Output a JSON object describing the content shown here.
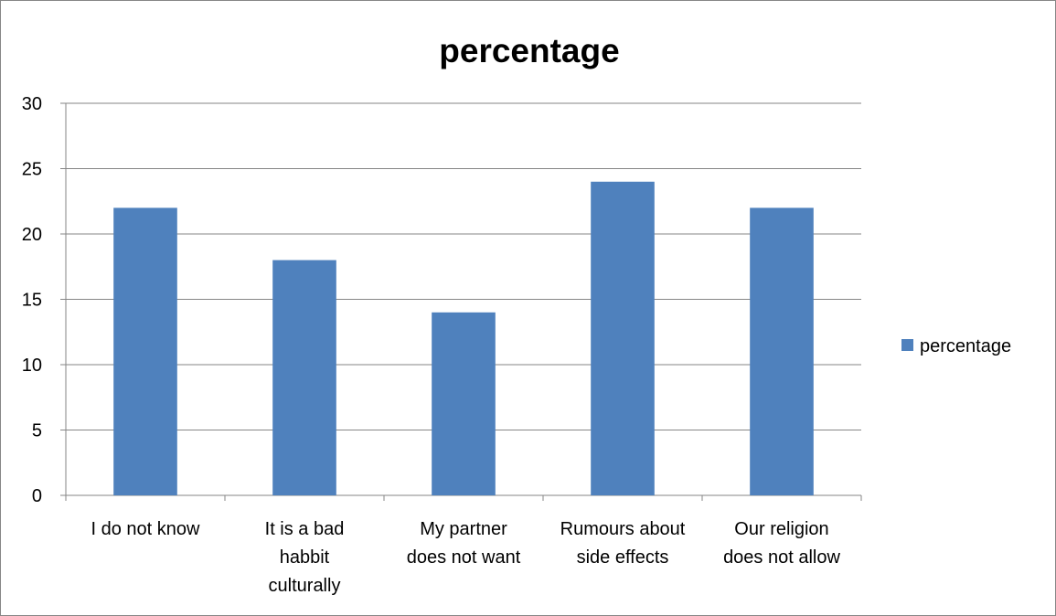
{
  "chart_data": {
    "type": "bar",
    "title": "percentage",
    "xlabel": "",
    "ylabel": "",
    "ylim": [
      0,
      30
    ],
    "yticks": [
      "0",
      "5",
      "10",
      "15",
      "20",
      "25",
      "30"
    ],
    "categories": [
      [
        "I do not know"
      ],
      [
        "It is a bad",
        "habbit",
        "culturally"
      ],
      [
        "My partner",
        "does not want"
      ],
      [
        "Rumours about",
        "side effects"
      ],
      [
        "Our religion",
        "does not allow"
      ]
    ],
    "series": [
      {
        "name": "percentage",
        "values": [
          22,
          18,
          14,
          24,
          22
        ]
      }
    ],
    "grid": true,
    "legend_position": "right",
    "colors": {
      "bar": "#4F81BD",
      "grid": "#868686",
      "axis": "#868686"
    }
  }
}
